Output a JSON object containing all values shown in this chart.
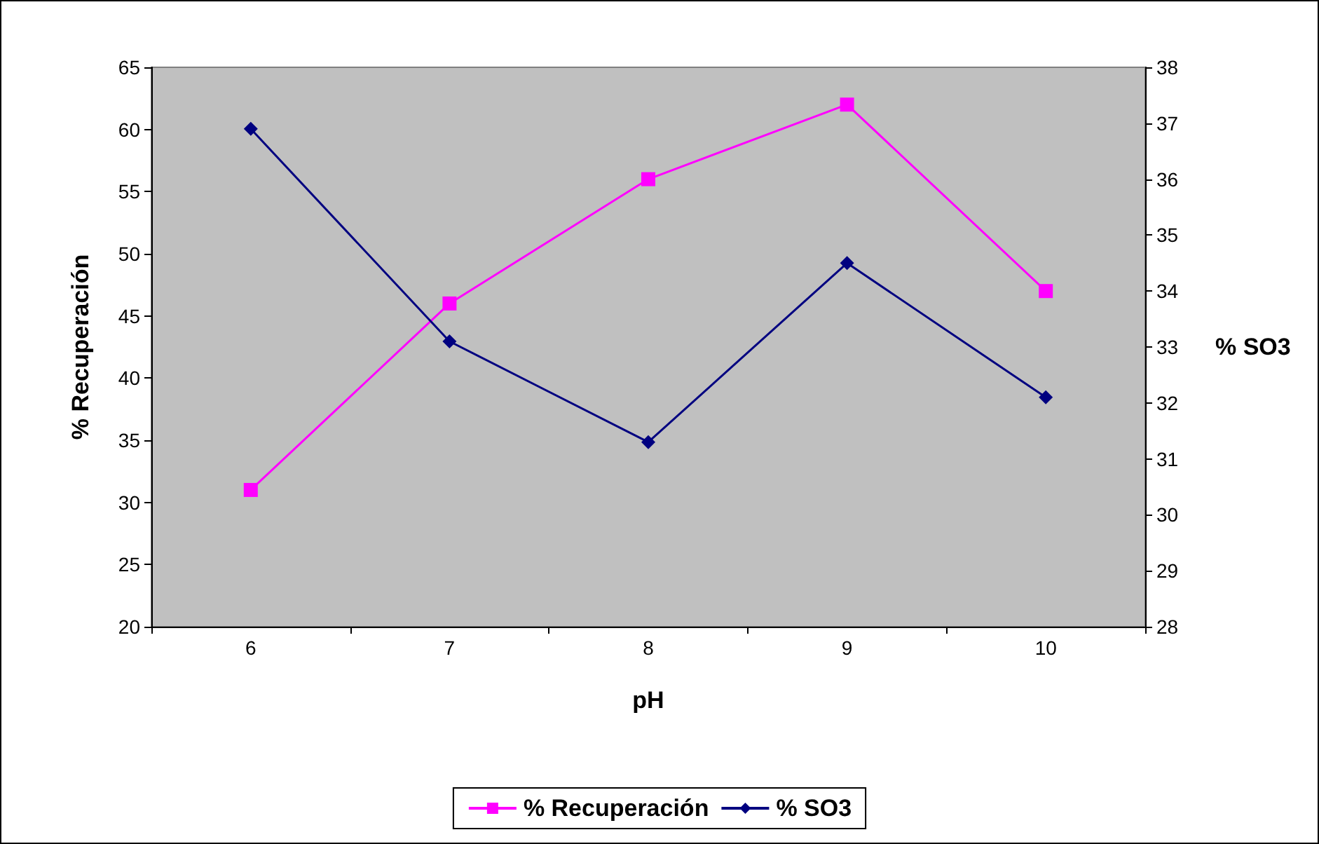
{
  "chart_data": {
    "type": "line",
    "xlabel": "pH",
    "ylabel": "% Recuperación",
    "y2label": "% SO3",
    "categories": [
      "6",
      "7",
      "8",
      "9",
      "10"
    ],
    "series": [
      {
        "name": "% Recuperación",
        "color": "#ff00ff",
        "marker": "square",
        "values": [
          31,
          46,
          56,
          62,
          47
        ]
      },
      {
        "name": "% SO3",
        "color": "#000080",
        "marker": "diamond",
        "axis": "y2",
        "values": [
          36.9,
          33.1,
          31.3,
          34.5,
          32.1
        ]
      }
    ],
    "ylim": [
      20,
      65
    ],
    "yticks": [
      20,
      25,
      30,
      35,
      40,
      45,
      50,
      55,
      60,
      65
    ],
    "y2lim": [
      28,
      38
    ],
    "y2ticks": [
      28,
      29,
      30,
      31,
      32,
      33,
      34,
      35,
      36,
      37,
      38
    ],
    "grid": false,
    "legend": "bottom"
  }
}
